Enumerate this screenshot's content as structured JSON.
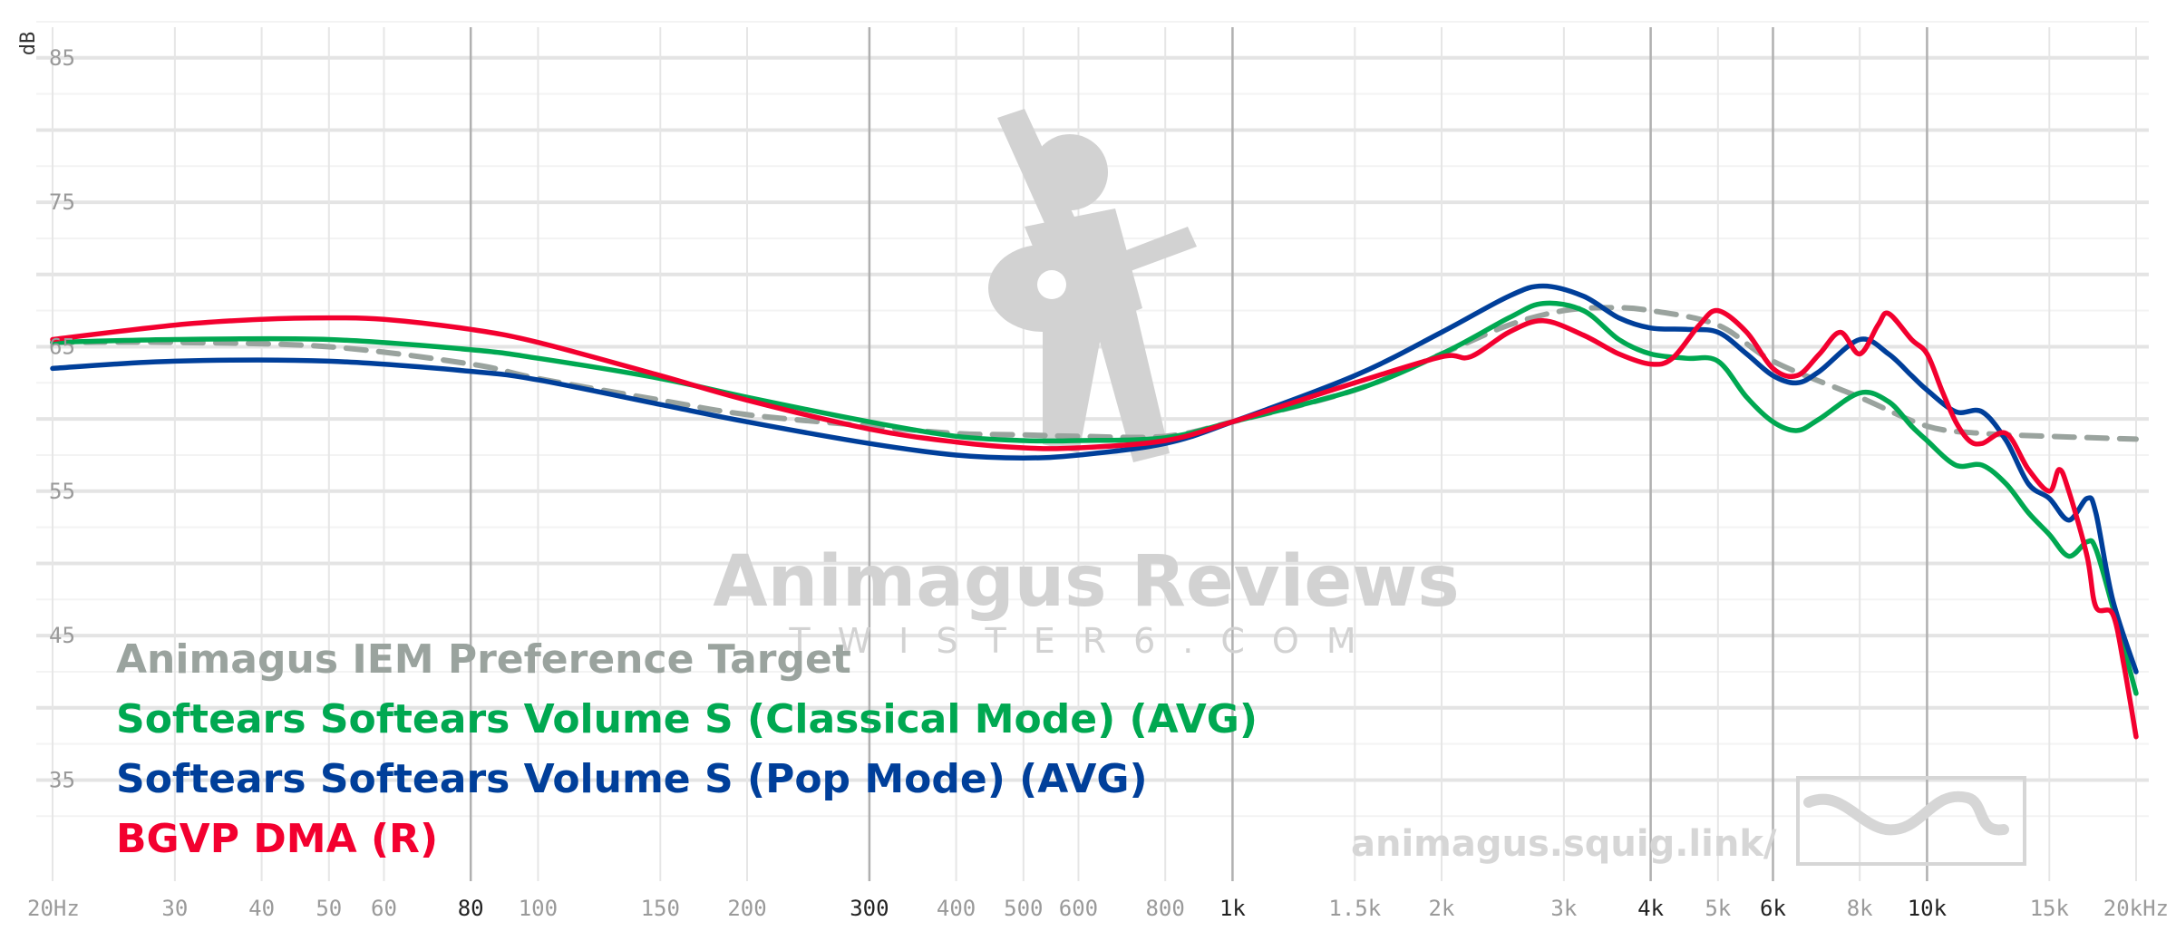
{
  "chart_data": {
    "type": "line",
    "x_scale": "log",
    "xlim": [
      20,
      20000
    ],
    "ylim": [
      28,
      88
    ],
    "y_unit": "dB",
    "x_ticks": [
      {
        "value": 20,
        "label": "20Hz",
        "major": false
      },
      {
        "value": 30,
        "label": "30",
        "major": false
      },
      {
        "value": 40,
        "label": "40",
        "major": false
      },
      {
        "value": 50,
        "label": "50",
        "major": false
      },
      {
        "value": 60,
        "label": "60",
        "major": false
      },
      {
        "value": 80,
        "label": "80",
        "major": true
      },
      {
        "value": 100,
        "label": "100",
        "major": false
      },
      {
        "value": 150,
        "label": "150",
        "major": false
      },
      {
        "value": 200,
        "label": "200",
        "major": false
      },
      {
        "value": 300,
        "label": "300",
        "major": true
      },
      {
        "value": 400,
        "label": "400",
        "major": false
      },
      {
        "value": 500,
        "label": "500",
        "major": false
      },
      {
        "value": 600,
        "label": "600",
        "major": false
      },
      {
        "value": 800,
        "label": "800",
        "major": false
      },
      {
        "value": 1000,
        "label": "1k",
        "major": true
      },
      {
        "value": 1500,
        "label": "1.5k",
        "major": false
      },
      {
        "value": 2000,
        "label": "2k",
        "major": false
      },
      {
        "value": 3000,
        "label": "3k",
        "major": false
      },
      {
        "value": 4000,
        "label": "4k",
        "major": true
      },
      {
        "value": 5000,
        "label": "5k",
        "major": false
      },
      {
        "value": 6000,
        "label": "6k",
        "major": true
      },
      {
        "value": 8000,
        "label": "8k",
        "major": false
      },
      {
        "value": 10000,
        "label": "10k",
        "major": true
      },
      {
        "value": 15000,
        "label": "15k",
        "major": false
      },
      {
        "value": 20000,
        "label": "20kHz",
        "major": false
      }
    ],
    "y_ticks": [
      {
        "value": 85,
        "label": "85"
      },
      {
        "value": 75,
        "label": "75"
      },
      {
        "value": 65,
        "label": "65"
      },
      {
        "value": 55,
        "label": "55"
      },
      {
        "value": 45,
        "label": "45"
      },
      {
        "value": 35,
        "label": "35"
      }
    ],
    "series": [
      {
        "name": "Animagus IEM Preference Target",
        "color": "#9aa39e",
        "dashed": true,
        "points": [
          [
            20,
            65.3
          ],
          [
            30,
            65.3
          ],
          [
            50,
            65.0
          ],
          [
            80,
            63.8
          ],
          [
            100,
            62.8
          ],
          [
            150,
            61.3
          ],
          [
            200,
            60.3
          ],
          [
            300,
            59.5
          ],
          [
            400,
            59.0
          ],
          [
            500,
            58.9
          ],
          [
            600,
            58.8
          ],
          [
            800,
            58.8
          ],
          [
            1000,
            59.8
          ],
          [
            1500,
            62.0
          ],
          [
            2000,
            64.5
          ],
          [
            2500,
            66.5
          ],
          [
            3000,
            67.5
          ],
          [
            3500,
            67.7
          ],
          [
            4000,
            67.5
          ],
          [
            5000,
            66.5
          ],
          [
            6000,
            64.0
          ],
          [
            8000,
            61.5
          ],
          [
            10000,
            59.5
          ],
          [
            12000,
            59.0
          ],
          [
            15000,
            58.8
          ],
          [
            20000,
            58.6
          ]
        ]
      },
      {
        "name": "Softears Softears Volume S (Classical Mode) (AVG)",
        "color": "#00a851",
        "dashed": false,
        "points": [
          [
            20,
            65.3
          ],
          [
            30,
            65.5
          ],
          [
            50,
            65.5
          ],
          [
            80,
            64.8
          ],
          [
            100,
            64.2
          ],
          [
            150,
            62.8
          ],
          [
            200,
            61.5
          ],
          [
            300,
            59.8
          ],
          [
            400,
            58.8
          ],
          [
            500,
            58.5
          ],
          [
            600,
            58.5
          ],
          [
            800,
            58.7
          ],
          [
            1000,
            59.8
          ],
          [
            1500,
            62.0
          ],
          [
            2000,
            64.5
          ],
          [
            2500,
            67.0
          ],
          [
            2800,
            68.0
          ],
          [
            3200,
            67.5
          ],
          [
            3600,
            65.5
          ],
          [
            4000,
            64.5
          ],
          [
            4500,
            64.2
          ],
          [
            5000,
            64.0
          ],
          [
            5500,
            61.5
          ],
          [
            6000,
            59.8
          ],
          [
            6500,
            59.2
          ],
          [
            7000,
            60.0
          ],
          [
            8000,
            61.8
          ],
          [
            8800,
            61.2
          ],
          [
            9500,
            59.5
          ],
          [
            10000,
            58.5
          ],
          [
            11000,
            56.8
          ],
          [
            12000,
            56.8
          ],
          [
            13000,
            55.5
          ],
          [
            14000,
            53.5
          ],
          [
            15000,
            52.0
          ],
          [
            16000,
            50.5
          ],
          [
            17000,
            51.5
          ],
          [
            17500,
            51.0
          ],
          [
            18500,
            47.0
          ],
          [
            20000,
            41.0
          ]
        ]
      },
      {
        "name": "Softears Softears Volume S (Pop Mode) (AVG)",
        "color": "#003f9a",
        "dashed": false,
        "points": [
          [
            20,
            63.5
          ],
          [
            30,
            64.0
          ],
          [
            50,
            64.0
          ],
          [
            80,
            63.3
          ],
          [
            100,
            62.7
          ],
          [
            150,
            61.0
          ],
          [
            200,
            59.8
          ],
          [
            300,
            58.3
          ],
          [
            400,
            57.5
          ],
          [
            500,
            57.3
          ],
          [
            600,
            57.5
          ],
          [
            800,
            58.3
          ],
          [
            1000,
            59.8
          ],
          [
            1500,
            63.0
          ],
          [
            2000,
            66.0
          ],
          [
            2500,
            68.5
          ],
          [
            2800,
            69.2
          ],
          [
            3200,
            68.5
          ],
          [
            3600,
            67.0
          ],
          [
            4000,
            66.3
          ],
          [
            4500,
            66.2
          ],
          [
            5000,
            66.0
          ],
          [
            5500,
            64.5
          ],
          [
            6000,
            63.0
          ],
          [
            6500,
            62.5
          ],
          [
            7000,
            63.3
          ],
          [
            8000,
            65.5
          ],
          [
            8800,
            64.5
          ],
          [
            9500,
            63.0
          ],
          [
            10000,
            62.0
          ],
          [
            11000,
            60.5
          ],
          [
            12000,
            60.5
          ],
          [
            13000,
            58.5
          ],
          [
            14000,
            55.5
          ],
          [
            15000,
            54.5
          ],
          [
            16000,
            53.0
          ],
          [
            17000,
            54.5
          ],
          [
            17500,
            53.5
          ],
          [
            18500,
            47.5
          ],
          [
            20000,
            42.5
          ]
        ]
      },
      {
        "name": "BGVP DMA (R)",
        "color": "#f3002f",
        "dashed": false,
        "points": [
          [
            20,
            65.5
          ],
          [
            30,
            66.5
          ],
          [
            40,
            66.9
          ],
          [
            50,
            67.0
          ],
          [
            60,
            66.9
          ],
          [
            80,
            66.2
          ],
          [
            100,
            65.3
          ],
          [
            150,
            63.0
          ],
          [
            200,
            61.3
          ],
          [
            300,
            59.3
          ],
          [
            400,
            58.4
          ],
          [
            500,
            58.0
          ],
          [
            600,
            58.0
          ],
          [
            800,
            58.5
          ],
          [
            1000,
            59.8
          ],
          [
            1500,
            62.5
          ],
          [
            2000,
            64.3
          ],
          [
            2200,
            64.3
          ],
          [
            2500,
            66.0
          ],
          [
            2800,
            66.8
          ],
          [
            3200,
            65.8
          ],
          [
            3600,
            64.5
          ],
          [
            4000,
            63.8
          ],
          [
            4300,
            64.2
          ],
          [
            4700,
            66.5
          ],
          [
            5000,
            67.5
          ],
          [
            5500,
            66.0
          ],
          [
            6000,
            63.5
          ],
          [
            6500,
            63.0
          ],
          [
            7000,
            64.5
          ],
          [
            7500,
            66.0
          ],
          [
            8000,
            64.5
          ],
          [
            8500,
            66.5
          ],
          [
            8800,
            67.3
          ],
          [
            9500,
            65.5
          ],
          [
            10000,
            64.5
          ],
          [
            10500,
            62.0
          ],
          [
            11000,
            59.8
          ],
          [
            11500,
            58.5
          ],
          [
            12000,
            58.3
          ],
          [
            13000,
            59.0
          ],
          [
            14000,
            56.5
          ],
          [
            15000,
            55.0
          ],
          [
            15500,
            56.5
          ],
          [
            16000,
            55.0
          ],
          [
            17000,
            50.5
          ],
          [
            17500,
            47.0
          ],
          [
            18500,
            46.5
          ],
          [
            19200,
            43.0
          ],
          [
            20000,
            38.0
          ]
        ]
      }
    ]
  },
  "legend": [
    {
      "label": "Animagus IEM Preference Target",
      "color": "#9aa39e"
    },
    {
      "label": "Softears Softears Volume S (Classical Mode) (AVG)",
      "color": "#00a851"
    },
    {
      "label": "Softears Softears Volume S (Pop Mode) (AVG)",
      "color": "#003f9a"
    },
    {
      "label": "BGVP DMA (R)",
      "color": "#f3002f"
    }
  ],
  "watermark": {
    "title": "Animagus Reviews",
    "subtitle": "TWISTER6.COM",
    "url": "animagus.squig.link/"
  },
  "colors": {
    "grid_major": "#b0b0b0",
    "grid_minor": "#e6e6e6",
    "watermark": "#d2d2d2"
  },
  "icons": [
    "guitarist-logo",
    "squiggle-logo"
  ]
}
